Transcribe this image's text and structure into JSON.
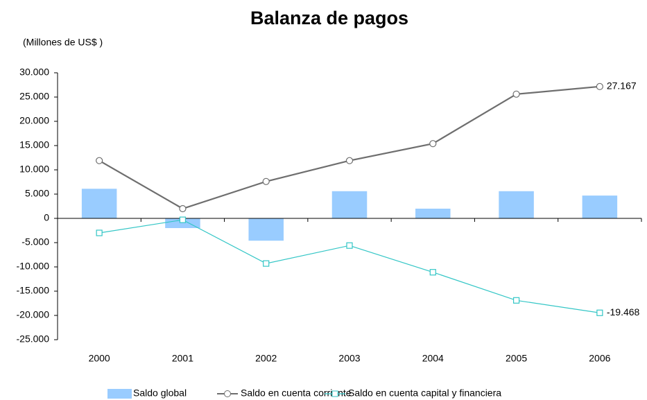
{
  "chart_data": {
    "type": "combo",
    "title": "Balanza de pagos",
    "subtitle": "(Millones de US$ )",
    "categories": [
      "2000",
      "2001",
      "2002",
      "2003",
      "2004",
      "2005",
      "2006"
    ],
    "series": [
      {
        "name": "Saldo global",
        "type": "bar",
        "color": "#99ccff",
        "values": [
          6100,
          -2000,
          -4600,
          5600,
          2000,
          5600,
          4700
        ]
      },
      {
        "name": "Saldo en cuenta corriente",
        "type": "line",
        "marker": "circle",
        "color": "#6e6e6e",
        "values": [
          11900,
          2000,
          7600,
          11900,
          15400,
          25600,
          27167
        ],
        "value_labels": [
          null,
          null,
          null,
          null,
          null,
          null,
          "27.167"
        ]
      },
      {
        "name": "Saldo en cuenta capital y financiera",
        "type": "line",
        "marker": "square",
        "color": "#33c6c6",
        "values": [
          -3000,
          -300,
          -9300,
          -5600,
          -11100,
          -16900,
          -19468
        ],
        "value_labels": [
          null,
          null,
          null,
          null,
          null,
          null,
          "-19.468"
        ]
      }
    ],
    "ylim": [
      -25000,
      30000
    ],
    "yticks": [
      {
        "value": -25000,
        "label": "-25.000"
      },
      {
        "value": -20000,
        "label": "-20.000"
      },
      {
        "value": -15000,
        "label": "-15.000"
      },
      {
        "value": -10000,
        "label": "-10.000"
      },
      {
        "value": -5000,
        "label": "-5.000"
      },
      0,
      {
        "value": 5000,
        "label": "5.000"
      },
      {
        "value": 10000,
        "label": "10.000"
      },
      {
        "value": 15000,
        "label": "15.000"
      },
      {
        "value": 20000,
        "label": "20.000"
      },
      {
        "value": 25000,
        "label": "25.000"
      },
      {
        "value": 30000,
        "label": "30.000"
      }
    ],
    "grid": false,
    "legend": "bottom"
  }
}
